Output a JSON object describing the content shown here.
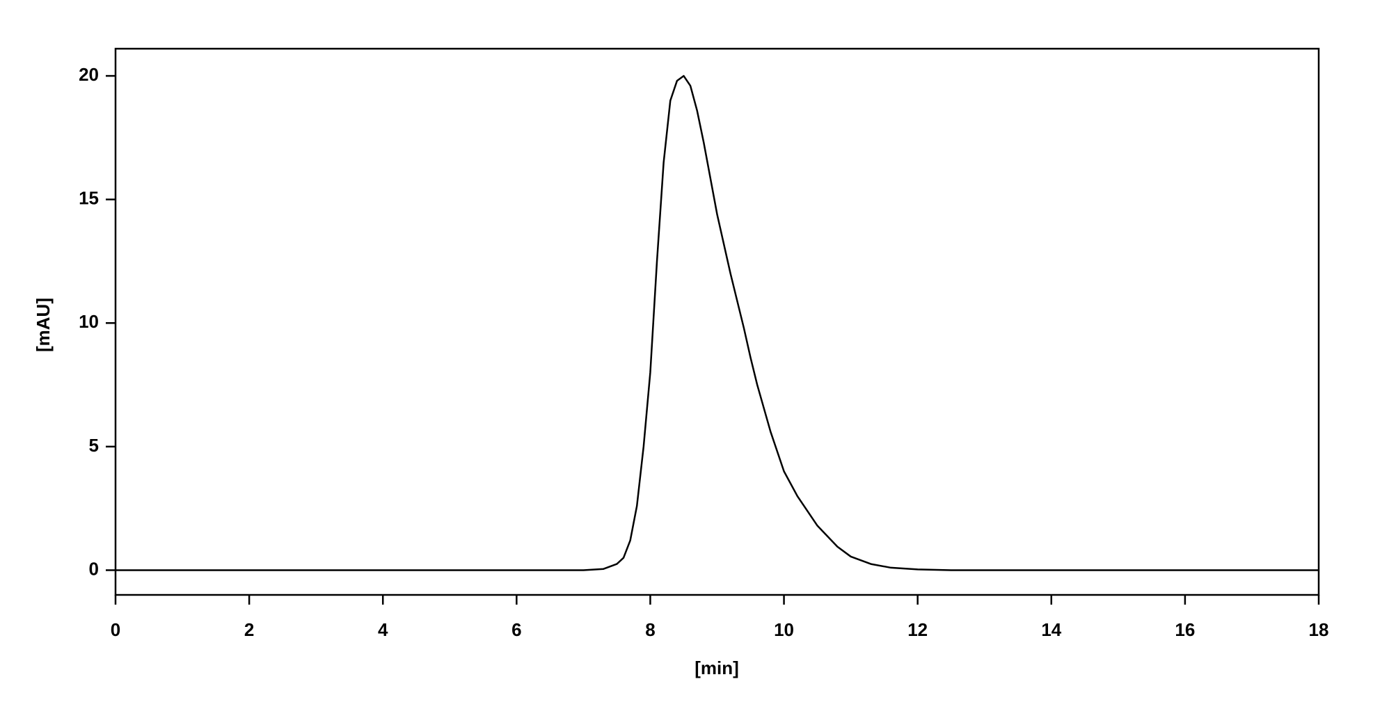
{
  "chart_data": {
    "type": "line",
    "xlabel": "[min]",
    "ylabel": "[mAU]",
    "x": [
      0,
      7,
      7.3,
      7.5,
      7.6,
      7.7,
      7.8,
      7.9,
      8.0,
      8.1,
      8.2,
      8.3,
      8.4,
      8.5,
      8.6,
      8.7,
      8.8,
      9.0,
      9.2,
      9.4,
      9.5,
      9.6,
      9.8,
      10.0,
      10.2,
      10.5,
      10.8,
      11.0,
      11.3,
      11.6,
      12.0,
      12.5,
      18
    ],
    "series": [
      {
        "color": "#000000",
        "values": [
          0,
          0,
          0.05,
          0.25,
          0.5,
          1.2,
          2.6,
          5,
          8,
          12.5,
          16.5,
          19,
          19.8,
          20,
          19.6,
          18.6,
          17.3,
          14.4,
          12,
          9.8,
          8.6,
          7.5,
          5.6,
          4,
          3,
          1.8,
          0.95,
          0.55,
          0.25,
          0.1,
          0.03,
          0,
          0
        ]
      }
    ],
    "xlim": [
      0,
      18
    ],
    "xticks": [
      0,
      2,
      4,
      6,
      8,
      10,
      12,
      14,
      16,
      18
    ],
    "ylim": [
      -1,
      21.1
    ],
    "yticks": [
      0,
      5,
      10,
      15,
      20
    ],
    "grid": false
  }
}
